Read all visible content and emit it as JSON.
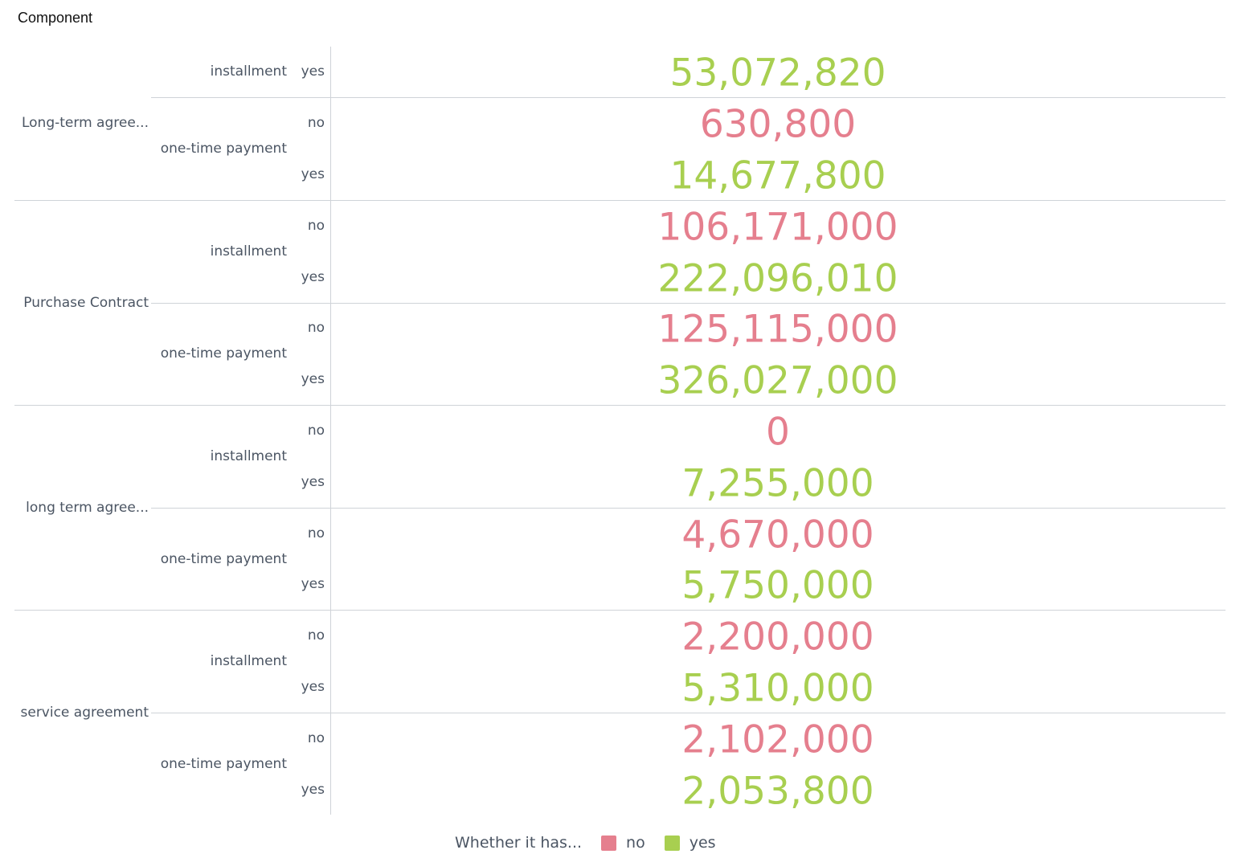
{
  "header": {
    "title": "Component"
  },
  "colors": {
    "no": "#e57f8e",
    "yes": "#a8cf50"
  },
  "legend": {
    "title": "Whether it has...",
    "items": [
      {
        "label": "no",
        "color": "#e57f8e"
      },
      {
        "label": "yes",
        "color": "#a8cf50"
      }
    ]
  },
  "chart_data": {
    "type": "table",
    "groups": [
      {
        "label": "Long-term agree...",
        "subgroups": [
          {
            "label": "installment",
            "rows": [
              {
                "key": "yes",
                "value": "53,072,820"
              }
            ]
          },
          {
            "label": "one-time payment",
            "rows": [
              {
                "key": "no",
                "value": "630,800"
              },
              {
                "key": "yes",
                "value": "14,677,800"
              }
            ]
          }
        ]
      },
      {
        "label": "Purchase Contract",
        "subgroups": [
          {
            "label": "installment",
            "rows": [
              {
                "key": "no",
                "value": "106,171,000"
              },
              {
                "key": "yes",
                "value": "222,096,010"
              }
            ]
          },
          {
            "label": "one-time payment",
            "rows": [
              {
                "key": "no",
                "value": "125,115,000"
              },
              {
                "key": "yes",
                "value": "326,027,000"
              }
            ]
          }
        ]
      },
      {
        "label": "long term agree...",
        "subgroups": [
          {
            "label": "installment",
            "rows": [
              {
                "key": "no",
                "value": "0"
              },
              {
                "key": "yes",
                "value": "7,255,000"
              }
            ]
          },
          {
            "label": "one-time payment",
            "rows": [
              {
                "key": "no",
                "value": "4,670,000"
              },
              {
                "key": "yes",
                "value": "5,750,000"
              }
            ]
          }
        ]
      },
      {
        "label": "service agreement",
        "subgroups": [
          {
            "label": "installment",
            "rows": [
              {
                "key": "no",
                "value": "2,200,000"
              },
              {
                "key": "yes",
                "value": "5,310,000"
              }
            ]
          },
          {
            "label": "one-time payment",
            "rows": [
              {
                "key": "no",
                "value": "2,102,000"
              },
              {
                "key": "yes",
                "value": "2,053,800"
              }
            ]
          }
        ]
      }
    ]
  }
}
